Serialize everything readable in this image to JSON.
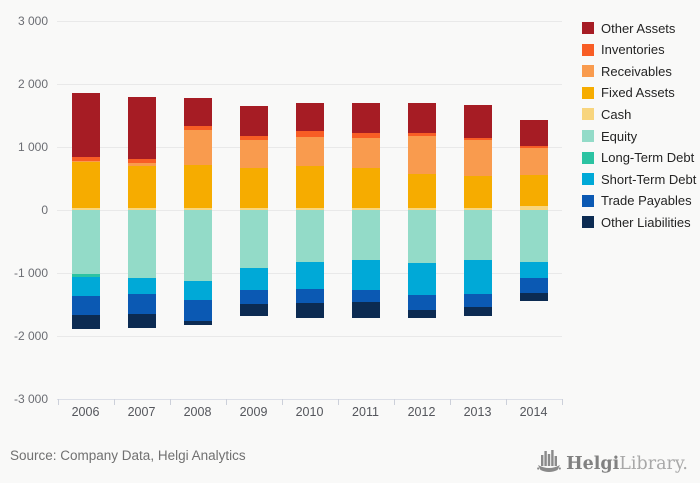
{
  "page": {
    "background": "#f9f9f8"
  },
  "chart_data": {
    "type": "bar",
    "stacked": true,
    "orientation": "vertical",
    "title": "",
    "xlabel": "",
    "ylabel": "",
    "ylim": [
      -3000,
      3000
    ],
    "grid": true,
    "legend_position": "right",
    "categories": [
      "2006",
      "2007",
      "2008",
      "2009",
      "2010",
      "2011",
      "2012",
      "2013",
      "2014"
    ],
    "y_ticks": [
      {
        "value": 3000,
        "label": "3 000"
      },
      {
        "value": 2000,
        "label": "2 000"
      },
      {
        "value": 1000,
        "label": "1 000"
      },
      {
        "value": 0,
        "label": "0"
      },
      {
        "value": -1000,
        "label": "-1 000"
      },
      {
        "value": -2000,
        "label": "-2 000"
      },
      {
        "value": -3000,
        "label": "-3 000"
      }
    ],
    "series": [
      {
        "name": "Other Assets",
        "color": "#a61c24",
        "values": [
          1015,
          980,
          445,
          470,
          455,
          480,
          480,
          515,
          415
        ]
      },
      {
        "name": "Inventories",
        "color": "#f85d25",
        "values": [
          60,
          65,
          75,
          65,
          90,
          70,
          55,
          40,
          30
        ]
      },
      {
        "name": "Receivables",
        "color": "#f99b4e",
        "values": [
          30,
          50,
          555,
          445,
          455,
          480,
          595,
          560,
          420
        ]
      },
      {
        "name": "Fixed Assets",
        "color": "#f6ac00",
        "values": [
          725,
          670,
          680,
          640,
          675,
          635,
          545,
          515,
          495
        ]
      },
      {
        "name": "Cash",
        "color": "#f8d57e",
        "values": [
          30,
          30,
          30,
          30,
          30,
          30,
          30,
          30,
          65
        ]
      },
      {
        "name": "Equity",
        "color": "#93dbc8",
        "values": [
          -1015,
          -1080,
          -1125,
          -925,
          -830,
          -800,
          -845,
          -800,
          -830
        ]
      },
      {
        "name": "Long-Term Debt",
        "color": "#2cc3a2",
        "values": [
          -55,
          0,
          0,
          0,
          0,
          0,
          0,
          0,
          0
        ]
      },
      {
        "name": "Short-Term Debt",
        "color": "#00a9d7",
        "values": [
          -295,
          -260,
          -310,
          -350,
          -430,
          -475,
          -505,
          -530,
          -250
        ]
      },
      {
        "name": "Trade Payables",
        "color": "#0b59b3",
        "values": [
          -305,
          -315,
          -325,
          -215,
          -215,
          -185,
          -230,
          -215,
          -235
        ]
      },
      {
        "name": "Other Liabilities",
        "color": "#0c2b52",
        "values": [
          -215,
          -215,
          -65,
          -200,
          -240,
          -260,
          -135,
          -130,
          -125
        ]
      }
    ]
  },
  "footer": {
    "source": "Source: Company Data, Helgi Analytics",
    "logo_bold": "Helgi",
    "logo_light": "Library."
  }
}
